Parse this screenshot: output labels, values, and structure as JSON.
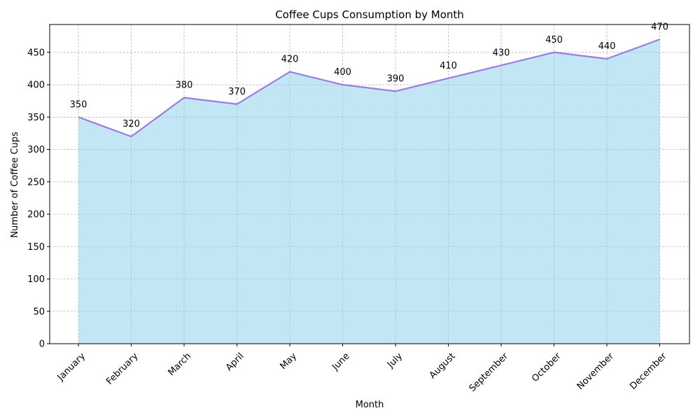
{
  "chart_data": {
    "type": "area",
    "title": "Coffee Cups Consumption by Month",
    "xlabel": "Month",
    "ylabel": "Number of Coffee Cups",
    "categories": [
      "January",
      "February",
      "March",
      "April",
      "May",
      "June",
      "July",
      "August",
      "September",
      "October",
      "November",
      "December"
    ],
    "values": [
      350,
      320,
      380,
      370,
      420,
      400,
      390,
      410,
      430,
      450,
      440,
      470
    ],
    "ylim": [
      0,
      493
    ],
    "yticks": [
      0,
      50,
      100,
      150,
      200,
      250,
      300,
      350,
      400,
      450
    ],
    "grid": true,
    "data_labels": true,
    "colors": {
      "fill": "#87ceeb",
      "line": "#9370db",
      "grid": "#a0a0a0"
    }
  }
}
